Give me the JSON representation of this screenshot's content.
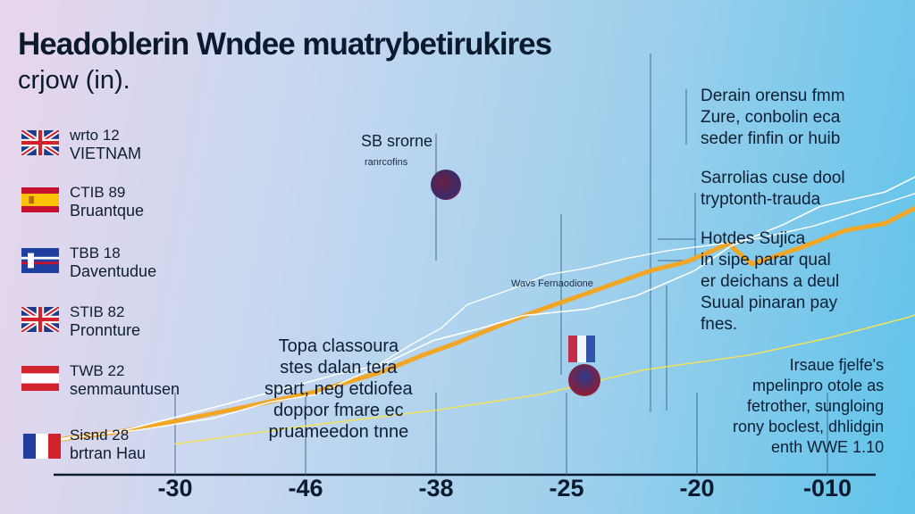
{
  "title": "Headoblerin Wndee muatrybetirukires",
  "subtitle": "crjow (in).",
  "legend": [
    {
      "code": "wrto 12",
      "name": "VIETNAM",
      "flag": "uk"
    },
    {
      "code": "CTIB 89",
      "name": "Bruantque",
      "flag": "spain"
    },
    {
      "code": "TBB 18",
      "name": "Daventudue",
      "flag": "blue"
    },
    {
      "code": "STIB 82",
      "name": "Pronnture",
      "flag": "uk"
    },
    {
      "code": "TWB 22",
      "name": "semmauntusen",
      "flag": "redwhite"
    },
    {
      "code": "Sisnd 28",
      "name": "brtran Hau",
      "flag": "france"
    }
  ],
  "annotations": {
    "sb_label": "SB srorne",
    "sb_sub": "ranrcofins",
    "map_label": "Wavs Fernaodione",
    "mid_note": [
      "Topa classoura",
      "stes dalan tera",
      "spart, neg etdiofea",
      "doppor fmare ec",
      "pruameedon tnne"
    ],
    "right_note1": [
      "Derain orensu fmm",
      "Zure, conbolin eca",
      "seder finfin or huib"
    ],
    "right_note2": [
      "Sarrolias cuse dool",
      "tryptonth-trauda"
    ],
    "right_note3": [
      "Hotdes Sujica",
      "in sipe parar qual",
      "er deichans a deul",
      "Suual pinaran pay",
      "fnes."
    ],
    "right_note4": [
      "Irsaue fjelfe's",
      "mpelinpro otole as",
      "fetrother, sungloing",
      "rony boclest, dhlidgin",
      "enth WWE 1.10"
    ]
  },
  "colors": {
    "main": "#f2a626",
    "faint": "#f3e25a",
    "white": "#ffffff",
    "guide": "#3f6e93",
    "axis": "#0b1a2e"
  },
  "chart_data": {
    "type": "line",
    "x": [
      -30,
      -46,
      -38,
      -25,
      -20,
      -10
    ],
    "xticks": [
      "-30",
      "-46",
      "-38",
      "-25",
      "-20",
      "-010"
    ],
    "series": [
      {
        "values": [
          [
            -34.8,
            0.5
          ],
          [
            -32.1,
            1.3
          ],
          [
            -30.9,
            1.8
          ],
          [
            -27.5,
            3.4
          ],
          [
            -24.7,
            4.8
          ],
          [
            -22.1,
            6.6
          ],
          [
            -20.5,
            8.1
          ],
          [
            -19.3,
            9.1
          ],
          [
            -17.3,
            11.0
          ],
          [
            -15.8,
            12.3
          ],
          [
            -13.6,
            14.1
          ],
          [
            -11.8,
            15.6
          ],
          [
            -10.4,
            16.4
          ],
          [
            -8.8,
            18.0
          ],
          [
            -7.9,
            16.2
          ],
          [
            -6.1,
            17.6
          ],
          [
            -4.3,
            19.2
          ],
          [
            -2.8,
            19.8
          ],
          [
            -1.2,
            21.7
          ],
          [
            0.5,
            23.9
          ],
          [
            1.5,
            23.6
          ],
          [
            3.0,
            26.2
          ],
          [
            4.4,
            28.1
          ],
          [
            5.9,
            30.5
          ],
          [
            7.2,
            32.6
          ],
          [
            9.0,
            34.6
          ]
        ]
      },
      {
        "values": [
          [
            -34.8,
            0.4
          ],
          [
            -31.8,
            1.5
          ],
          [
            -28.1,
            3.7
          ],
          [
            -25.7,
            5.2
          ],
          [
            -23.8,
            6.4
          ],
          [
            -22.0,
            7.3
          ],
          [
            -20.1,
            9.4
          ],
          [
            -18.1,
            10.6
          ],
          [
            -16.7,
            11.6
          ],
          [
            -14.2,
            12.2
          ],
          [
            -12.3,
            13.4
          ],
          [
            -10.1,
            15.6
          ],
          [
            -8.7,
            17.8
          ],
          [
            -6.7,
            19.7
          ],
          [
            -5.3,
            21.3
          ],
          [
            -2.8,
            22.6
          ],
          [
            -0.9,
            24.8
          ],
          [
            0.6,
            27.1
          ],
          [
            2.5,
            29.1
          ],
          [
            4.1,
            31.3
          ],
          [
            6.1,
            33.9
          ],
          [
            7.3,
            35.6
          ],
          [
            8.1,
            36.3
          ],
          [
            10.2,
            33.8
          ],
          [
            12.2,
            32.4
          ],
          [
            14.1,
            34.6
          ],
          [
            15.8,
            36.8
          ]
        ]
      },
      {
        "values": [
          [
            -34.8,
            0.6
          ],
          [
            -31.5,
            1.4
          ],
          [
            -28.5,
            2.5
          ],
          [
            -26.4,
            3.9
          ],
          [
            -24.6,
            4.6
          ],
          [
            -22.6,
            6.7
          ],
          [
            -20.9,
            9.1
          ],
          [
            -19.8,
            10.5
          ],
          [
            -18.8,
            12.6
          ],
          [
            -17.2,
            13.9
          ],
          [
            -15.8,
            15.2
          ],
          [
            -14.1,
            15.9
          ],
          [
            -12.7,
            16.7
          ],
          [
            -11.1,
            17.4
          ],
          [
            -9.4,
            17.9
          ],
          [
            -7.6,
            18.5
          ],
          [
            -5.5,
            19.6
          ],
          [
            -3.6,
            21.0
          ],
          [
            -1.6,
            22.5
          ],
          [
            0.2,
            24.3
          ],
          [
            1.9,
            26.1
          ],
          [
            3.6,
            28.0
          ]
        ]
      },
      {
        "values": [
          [
            -30.0,
            0.2
          ],
          [
            -25.0,
            1.8
          ],
          [
            -20.0,
            3.2
          ],
          [
            -16.0,
            4.6
          ],
          [
            -12.0,
            6.8
          ],
          [
            -8.0,
            8.1
          ],
          [
            -5.0,
            9.6
          ],
          [
            -2.0,
            11.4
          ],
          [
            1.0,
            13.6
          ],
          [
            4.5,
            16.3
          ],
          [
            8.0,
            19.5
          ],
          [
            11.0,
            22.4
          ],
          [
            14.5,
            26.1
          ]
        ]
      }
    ]
  }
}
